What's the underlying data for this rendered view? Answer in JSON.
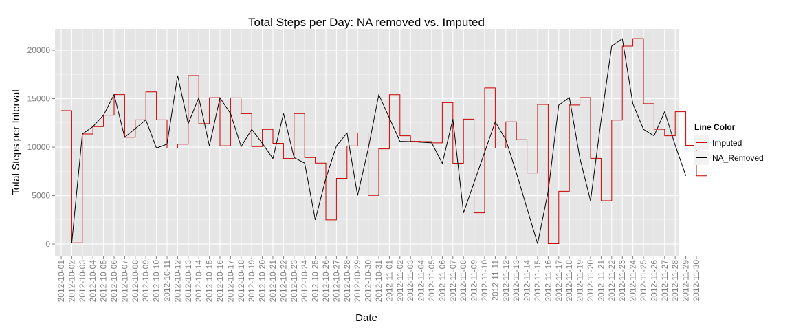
{
  "chart_data": {
    "type": "line",
    "title": "Total Steps per Day:  NA removed vs. Imputed",
    "xlabel": "Date",
    "ylabel": "Total Steps per Interval",
    "ylim": [
      -1200,
      22200
    ],
    "yticks": [
      0,
      5000,
      10000,
      15000,
      20000
    ],
    "grid": true,
    "legend": {
      "title": "Line Color",
      "position": "right"
    },
    "colors": {
      "Imputed": "#cc0000",
      "NA_Removed": "#000000",
      "panel": "#e5e5e5",
      "grid_major": "#ffffff",
      "grid_minor": "#f2f2f2"
    },
    "x": [
      "2012-10-01",
      "2012-10-02",
      "2012-10-03",
      "2012-10-04",
      "2012-10-05",
      "2012-10-06",
      "2012-10-07",
      "2012-10-08",
      "2012-10-09",
      "2012-10-10",
      "2012-10-11",
      "2012-10-12",
      "2012-10-13",
      "2012-10-14",
      "2012-10-15",
      "2012-10-16",
      "2012-10-17",
      "2012-10-18",
      "2012-10-19",
      "2012-10-20",
      "2012-10-21",
      "2012-10-22",
      "2012-10-23",
      "2012-10-24",
      "2012-10-25",
      "2012-10-26",
      "2012-10-27",
      "2012-10-28",
      "2012-10-29",
      "2012-10-30",
      "2012-10-31",
      "2012-11-01",
      "2012-11-02",
      "2012-11-03",
      "2012-11-04",
      "2012-11-05",
      "2012-11-06",
      "2012-11-07",
      "2012-11-08",
      "2012-11-09",
      "2012-11-10",
      "2012-11-11",
      "2012-11-12",
      "2012-11-13",
      "2012-11-14",
      "2012-11-15",
      "2012-11-16",
      "2012-11-17",
      "2012-11-18",
      "2012-11-19",
      "2012-11-20",
      "2012-11-21",
      "2012-11-22",
      "2012-11-23",
      "2012-11-24",
      "2012-11-25",
      "2012-11-26",
      "2012-11-27",
      "2012-11-28",
      "2012-11-29",
      "2012-11-30"
    ],
    "series": [
      {
        "name": "Imputed",
        "style": "step",
        "values": [
          13766,
          126,
          11352,
          12116,
          13294,
          15420,
          11015,
          12811,
          15695,
          12811,
          9900,
          10304,
          17382,
          12426,
          15098,
          10139,
          15084,
          13452,
          10056,
          11829,
          10395,
          8821,
          13460,
          8918,
          8355,
          2492,
          6778,
          10119,
          11458,
          5018,
          9819,
          15414,
          11162,
          10600,
          10571,
          10439,
          14583,
          8334,
          12883,
          3219,
          16109,
          9900,
          12608,
          10765,
          7336,
          14400,
          41,
          5441,
          14339,
          15110,
          8841,
          4472,
          12787,
          20427,
          21194,
          14478,
          11834,
          11162,
          13646,
          10183,
          7047
        ]
      },
      {
        "name": "NA_Removed",
        "style": "line",
        "points": [
          [
            "2012-10-02",
            126
          ],
          [
            "2012-10-03",
            11352
          ],
          [
            "2012-10-04",
            12116
          ],
          [
            "2012-10-05",
            13294
          ],
          [
            "2012-10-06",
            15420
          ],
          [
            "2012-10-07",
            11015
          ],
          [
            "2012-10-09",
            12811
          ],
          [
            "2012-10-10",
            9900
          ],
          [
            "2012-10-11",
            10304
          ],
          [
            "2012-10-12",
            17382
          ],
          [
            "2012-10-13",
            12426
          ],
          [
            "2012-10-14",
            15098
          ],
          [
            "2012-10-15",
            10139
          ],
          [
            "2012-10-16",
            15084
          ],
          [
            "2012-10-17",
            13452
          ],
          [
            "2012-10-18",
            10056
          ],
          [
            "2012-10-19",
            11829
          ],
          [
            "2012-10-20",
            10395
          ],
          [
            "2012-10-21",
            8821
          ],
          [
            "2012-10-22",
            13460
          ],
          [
            "2012-10-23",
            8918
          ],
          [
            "2012-10-24",
            8355
          ],
          [
            "2012-10-25",
            2492
          ],
          [
            "2012-10-26",
            6778
          ],
          [
            "2012-10-27",
            10119
          ],
          [
            "2012-10-28",
            11458
          ],
          [
            "2012-10-29",
            5018
          ],
          [
            "2012-10-30",
            9819
          ],
          [
            "2012-10-31",
            15414
          ],
          [
            "2012-11-02",
            10600
          ],
          [
            "2012-11-03",
            10571
          ],
          [
            "2012-11-05",
            10439
          ],
          [
            "2012-11-06",
            8334
          ],
          [
            "2012-11-07",
            12883
          ],
          [
            "2012-11-08",
            3219
          ],
          [
            "2012-11-11",
            12608
          ],
          [
            "2012-11-12",
            10765
          ],
          [
            "2012-11-13",
            7336
          ],
          [
            "2012-11-15",
            41
          ],
          [
            "2012-11-16",
            5441
          ],
          [
            "2012-11-17",
            14339
          ],
          [
            "2012-11-18",
            15110
          ],
          [
            "2012-11-19",
            8841
          ],
          [
            "2012-11-20",
            4472
          ],
          [
            "2012-11-21",
            12787
          ],
          [
            "2012-11-22",
            20427
          ],
          [
            "2012-11-23",
            21194
          ],
          [
            "2012-11-24",
            14478
          ],
          [
            "2012-11-25",
            11834
          ],
          [
            "2012-11-26",
            11162
          ],
          [
            "2012-11-27",
            13646
          ],
          [
            "2012-11-28",
            10183
          ],
          [
            "2012-11-29",
            7047
          ]
        ]
      }
    ]
  }
}
